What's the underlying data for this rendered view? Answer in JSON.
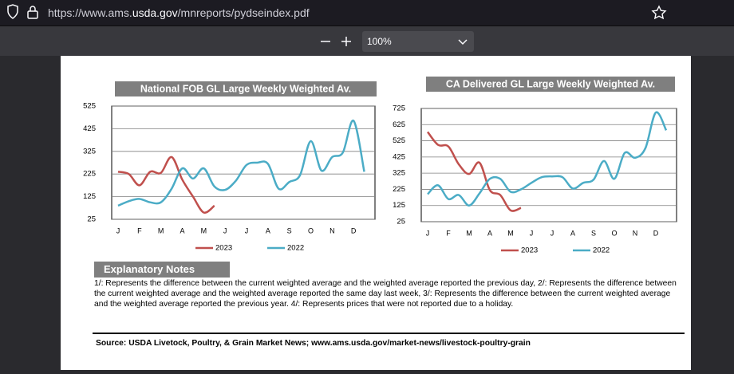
{
  "browser": {
    "url_parts": [
      "https://www.ams.",
      "usda.gov",
      "/mnreports/pydseindex.pdf"
    ],
    "zoom": "100%"
  },
  "chart_data": [
    {
      "type": "line",
      "title": "National FOB GL Large  Weekly Weighted Av.",
      "categories": [
        "J",
        null,
        "F",
        null,
        "M",
        null,
        "A",
        null,
        "M",
        null,
        "J",
        null,
        "J",
        null,
        "A",
        null,
        "S",
        null,
        "O",
        null,
        "N",
        null,
        "D",
        null
      ],
      "series": [
        {
          "name": "2023",
          "color": "#c0504d",
          "values": [
            235,
            225,
            175,
            235,
            230,
            300,
            200,
            125,
            55,
            85,
            null,
            null,
            null,
            null,
            null,
            null,
            null,
            null,
            null,
            null,
            null,
            null,
            null,
            null
          ]
        },
        {
          "name": "2022",
          "color": "#4bacc6",
          "values": [
            85,
            105,
            115,
            100,
            100,
            160,
            250,
            205,
            250,
            170,
            155,
            195,
            265,
            275,
            270,
            160,
            190,
            220,
            370,
            240,
            300,
            320,
            460,
            235
          ]
        }
      ],
      "ylim": [
        25,
        525
      ],
      "yticks": [
        25,
        125,
        225,
        325,
        425,
        525
      ],
      "grid": true
    },
    {
      "type": "line",
      "title": "CA Delivered GL Large Weekly Weighted Av.",
      "categories": [
        "J",
        null,
        "F",
        null,
        "M",
        null,
        "A",
        null,
        "M",
        null,
        "J",
        null,
        "J",
        null,
        "A",
        null,
        "S",
        null,
        "O",
        null,
        "N",
        null,
        "D",
        null
      ],
      "series": [
        {
          "name": "2023",
          "color": "#c0504d",
          "values": [
            580,
            500,
            490,
            380,
            320,
            390,
            220,
            190,
            95,
            110,
            null,
            null,
            null,
            null,
            null,
            null,
            null,
            null,
            null,
            null,
            null,
            null,
            null,
            null
          ]
        },
        {
          "name": "2022",
          "color": "#4bacc6",
          "values": [
            195,
            250,
            165,
            190,
            125,
            200,
            290,
            290,
            210,
            225,
            265,
            300,
            305,
            300,
            230,
            265,
            285,
            400,
            290,
            450,
            420,
            480,
            700,
            590
          ]
        }
      ],
      "ylim": [
        25,
        725
      ],
      "yticks": [
        25,
        125,
        225,
        325,
        425,
        525,
        625,
        725
      ],
      "grid": true
    }
  ],
  "notes": {
    "title": "Explanatory Notes",
    "text": "1/: Represents the difference between the current weighted average and the weighted average reported the previous day, 2/: Represents the difference between the current weighted average and the weighted average reported the same day last week, 3/: Represents the difference between the current weighted average and the weighted average reported the previous year. 4/: Represents prices that were not reported due to a holiday."
  },
  "source": "Source: USDA Livetock, Poultry, & Grain Market News; www.ams.usda.gov/market-news/livestock-poultry-grain"
}
